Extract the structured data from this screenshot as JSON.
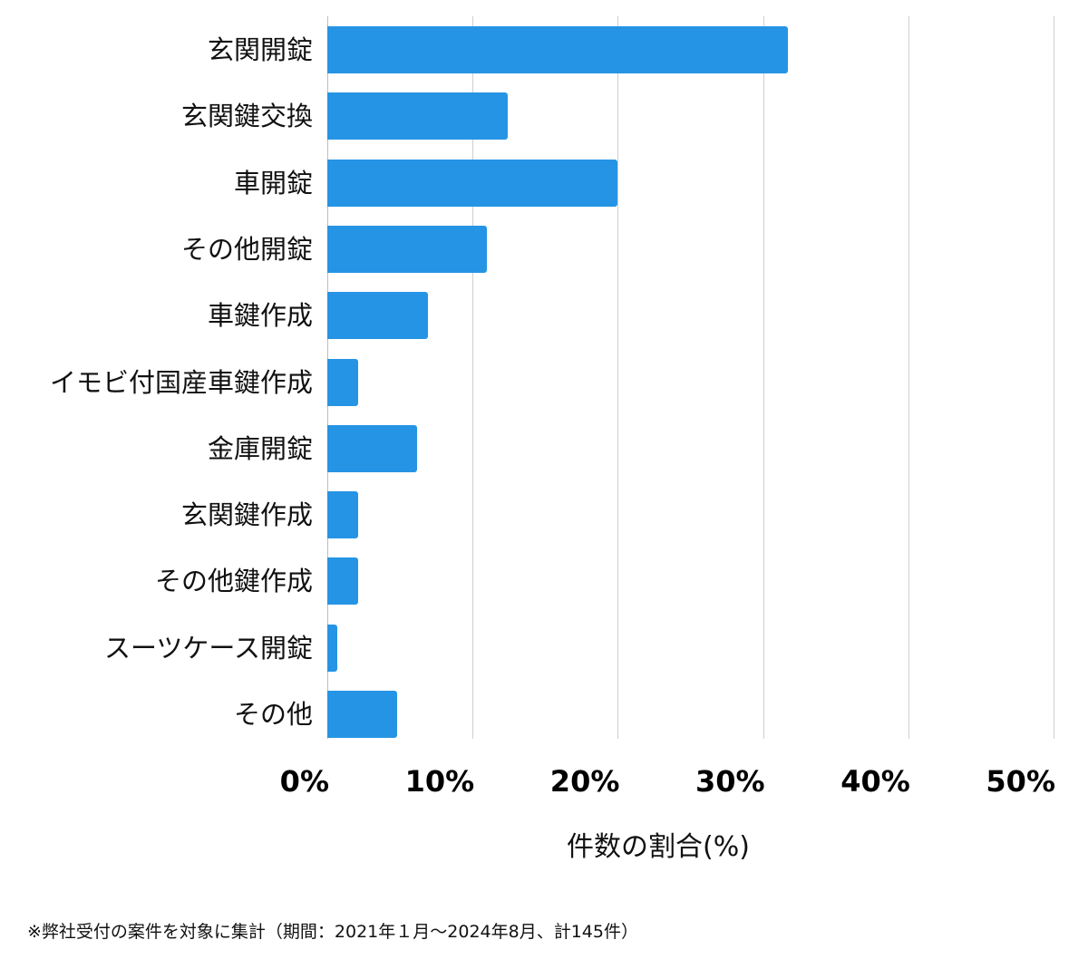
{
  "chart_data": {
    "type": "bar",
    "orientation": "horizontal",
    "title": "",
    "xlabel": "件数の割合(%)",
    "ylabel": "",
    "xlim": [
      0,
      50
    ],
    "grid": true,
    "legend": null,
    "categories": [
      "玄関開錠",
      "玄関鍵交換",
      "車開錠",
      "その他開錠",
      "車鍵作成",
      "イモビ付国産車鍵作成",
      "金庫開錠",
      "玄関鍵作成",
      "その他鍵作成",
      "スーツケース開錠",
      "その他"
    ],
    "values": [
      31.7,
      12.4,
      20.0,
      11.0,
      6.9,
      2.1,
      6.2,
      2.1,
      2.1,
      0.7,
      4.8
    ],
    "x_ticks": [
      "0%",
      "10%",
      "20%",
      "30%",
      "40%",
      "50%"
    ],
    "bar_color": "#2694e4",
    "annotation": "※弊社受付の案件を対象に集計（期間：2021年１月～2024年8月、計145件）"
  },
  "labels": {
    "categories": [
      "玄関開錠",
      "玄関鍵交換",
      "車開錠",
      "その他開錠",
      "車鍵作成",
      "イモビ付国産車鍵作成",
      "金庫開錠",
      "玄関鍵作成",
      "その他鍵作成",
      "スーツケース開錠",
      "その他"
    ],
    "x_ticks": [
      "0%",
      "10%",
      "20%",
      "30%",
      "40%",
      "50%"
    ],
    "x_title": "件数の割合(%)",
    "footnote": "※弊社受付の案件を対象に集計（期間：2021年１月～2024年8月、計145件）"
  }
}
